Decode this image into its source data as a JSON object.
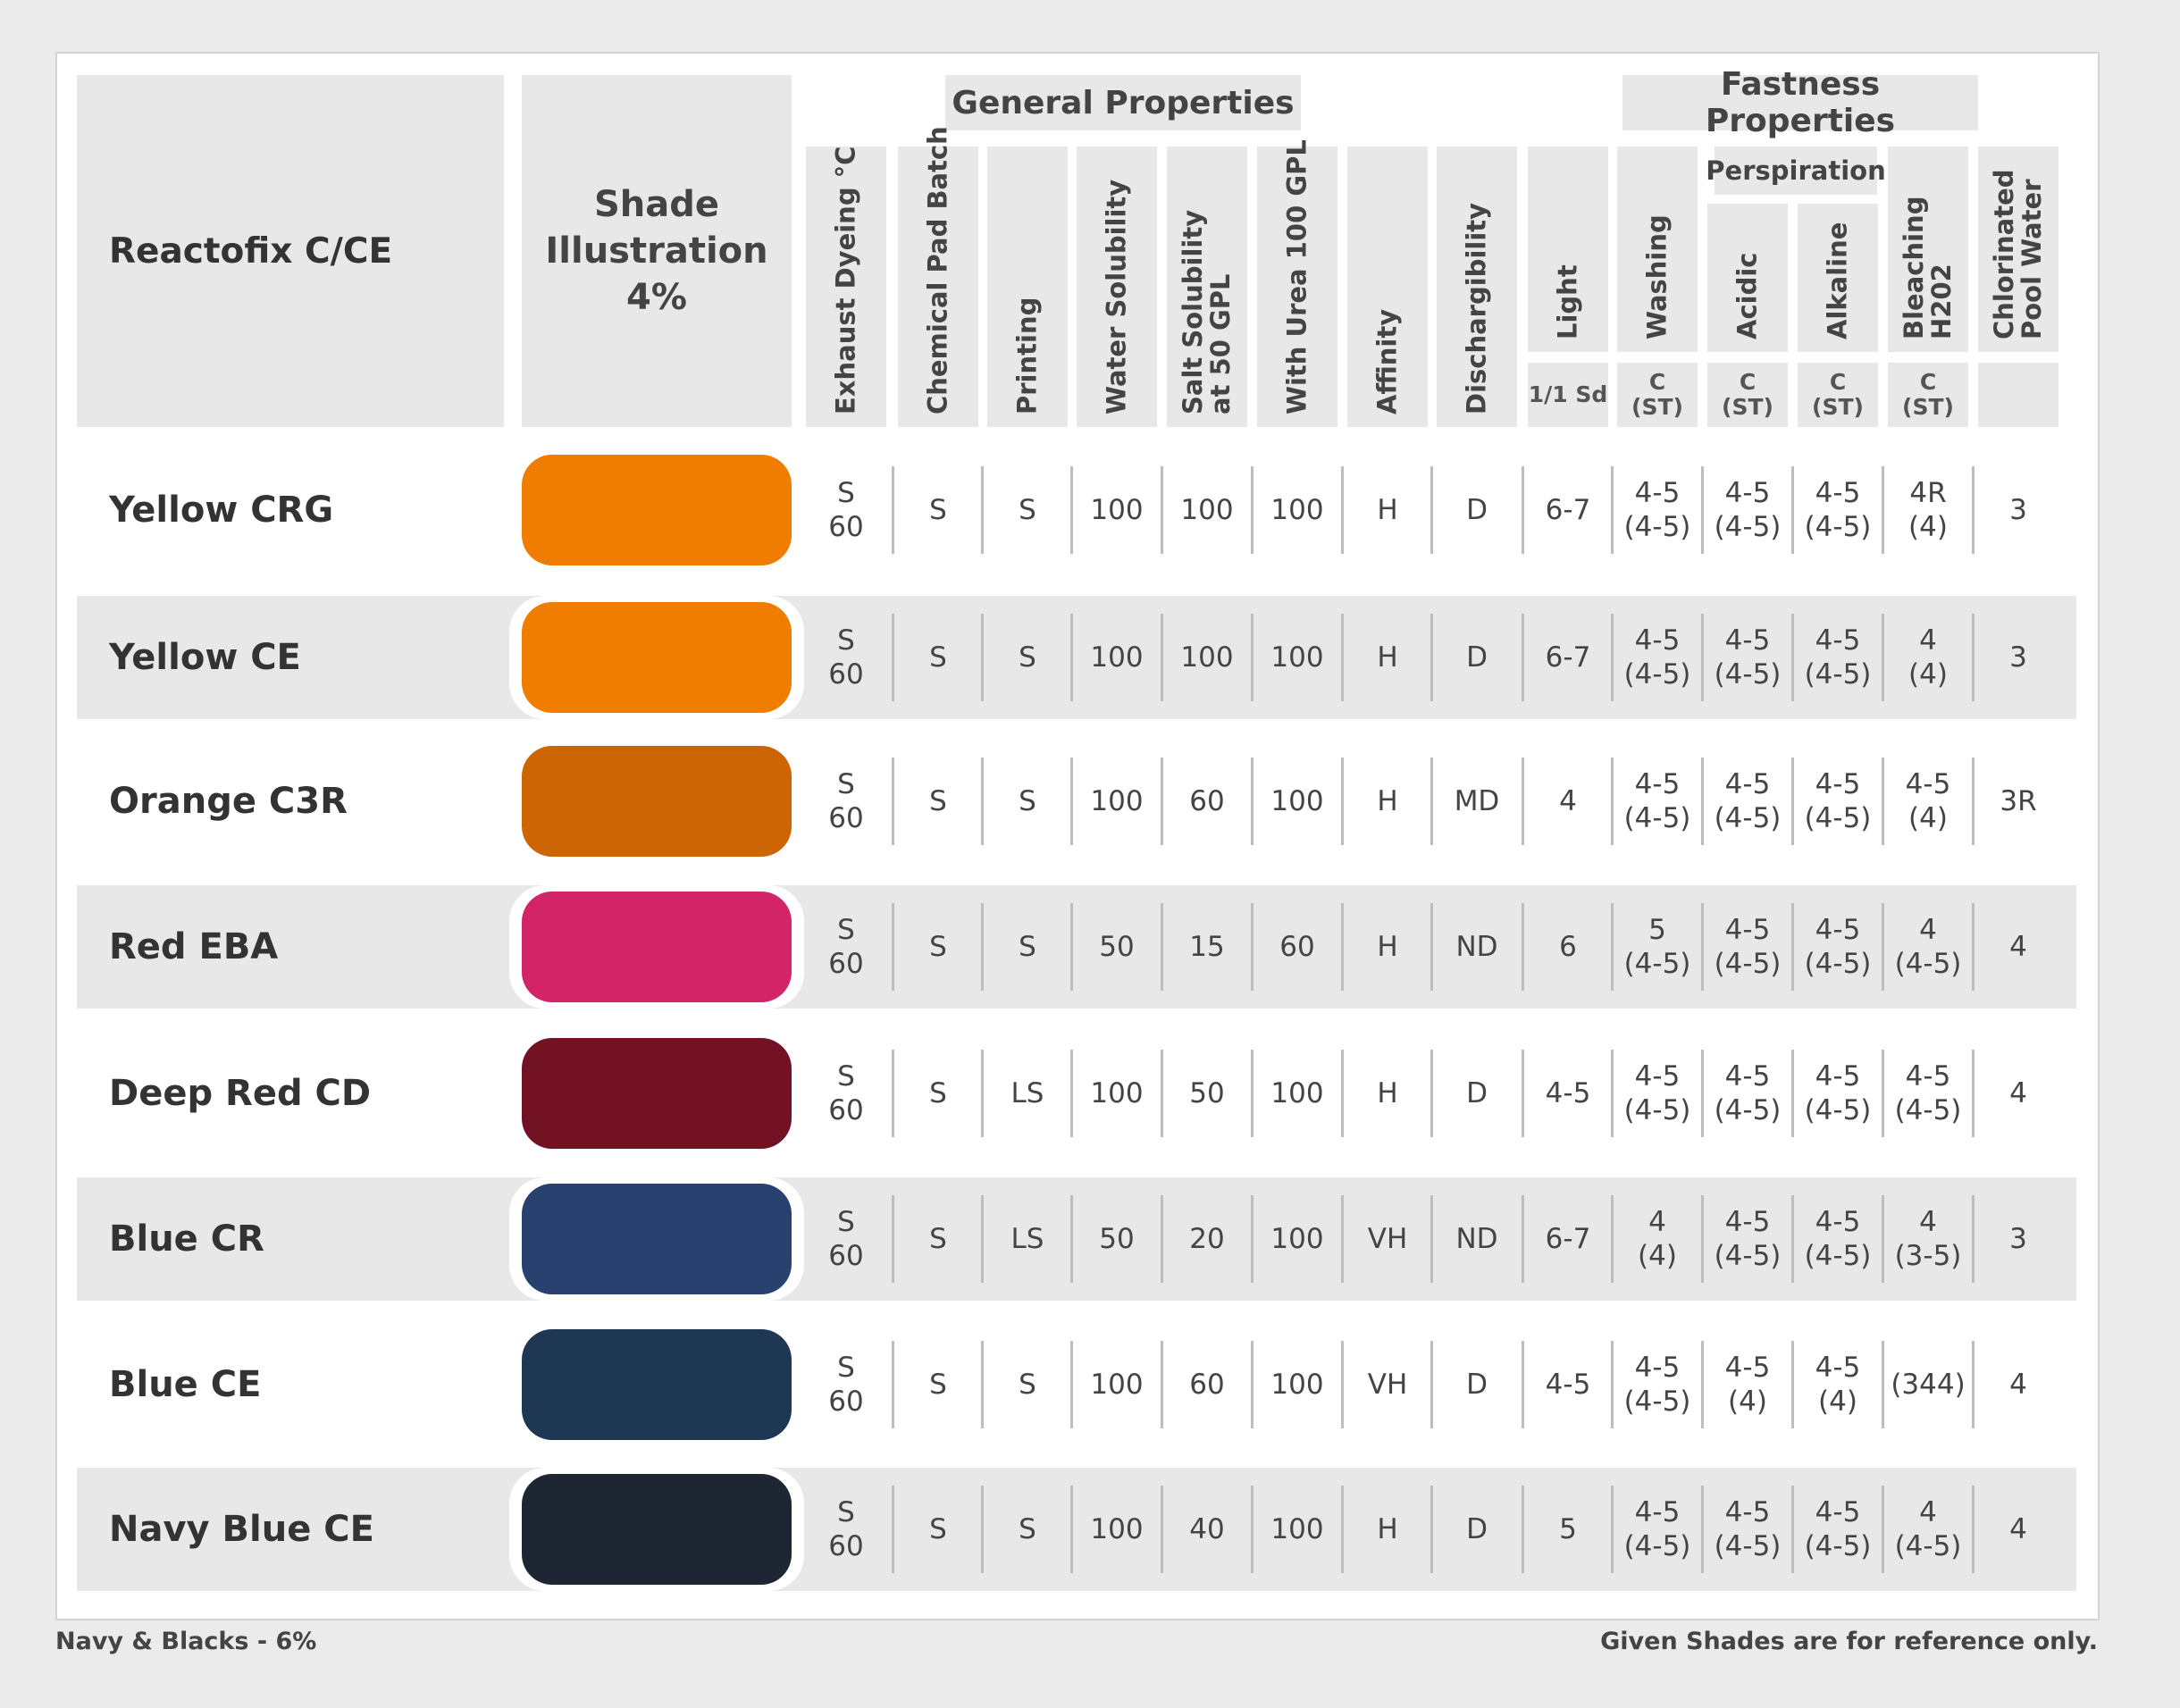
{
  "table": {
    "title": "Reactofix C/CE",
    "shade_header": [
      "Shade",
      "Illustration",
      "4%"
    ],
    "group_general": "General Properties",
    "group_fastness": "Fastness Properties",
    "subgroup_perspiration": "Perspiration",
    "columns": [
      {
        "lines": [
          "Exhaust Dyeing °C"
        ],
        "sub": ""
      },
      {
        "lines": [
          "Chemical Pad Batch"
        ],
        "sub": ""
      },
      {
        "lines": [
          "Printing"
        ],
        "sub": ""
      },
      {
        "lines": [
          "Water Solubility"
        ],
        "sub": ""
      },
      {
        "lines": [
          "Salt Solubility",
          "at 50 GPL"
        ],
        "sub": ""
      },
      {
        "lines": [
          "With Urea 100 GPL"
        ],
        "sub": ""
      },
      {
        "lines": [
          "Affinity"
        ],
        "sub": ""
      },
      {
        "lines": [
          "Dischargibility"
        ],
        "sub": ""
      },
      {
        "lines": [
          "Light"
        ],
        "sub": "1/1 Sd"
      },
      {
        "lines": [
          "Washing"
        ],
        "sub": "C\n(ST)"
      },
      {
        "lines": [
          "Acidic"
        ],
        "sub": "C\n(ST)"
      },
      {
        "lines": [
          "Alkaline"
        ],
        "sub": "C\n(ST)"
      },
      {
        "lines": [
          "Bleaching",
          "H202"
        ],
        "sub": "C\n(ST)"
      },
      {
        "lines": [
          "Chlorinated",
          "Pool Water"
        ],
        "sub": ""
      }
    ],
    "rows": [
      {
        "name": "Yellow CRG",
        "color": "#f07c00",
        "values": [
          "S\n60",
          "S",
          "S",
          "100",
          "100",
          "100",
          "H",
          "D",
          "6-7",
          "4-5\n(4-5)",
          "4-5\n(4-5)",
          "4-5\n(4-5)",
          "4R\n(4)",
          "3"
        ]
      },
      {
        "name": "Yellow CE",
        "color": "#f07c00",
        "values": [
          "S\n60",
          "S",
          "S",
          "100",
          "100",
          "100",
          "H",
          "D",
          "6-7",
          "4-5\n(4-5)",
          "4-5\n(4-5)",
          "4-5\n(4-5)",
          "4\n(4)",
          "3"
        ]
      },
      {
        "name": "Orange C3R",
        "color": "#cd6504",
        "values": [
          "S\n60",
          "S",
          "S",
          "100",
          "60",
          "100",
          "H",
          "MD",
          "4",
          "4-5\n(4-5)",
          "4-5\n(4-5)",
          "4-5\n(4-5)",
          "4-5\n(4)",
          "3R"
        ]
      },
      {
        "name": "Red EBA",
        "color": "#d22466",
        "values": [
          "S\n60",
          "S",
          "S",
          "50",
          "15",
          "60",
          "H",
          "ND",
          "6",
          "5\n(4-5)",
          "4-5\n(4-5)",
          "4-5\n(4-5)",
          "4\n(4-5)",
          "4"
        ]
      },
      {
        "name": "Deep Red CD",
        "color": "#721223",
        "values": [
          "S\n60",
          "S",
          "LS",
          "100",
          "50",
          "100",
          "H",
          "D",
          "4-5",
          "4-5\n(4-5)",
          "4-5\n(4-5)",
          "4-5\n(4-5)",
          "4-5\n(4-5)",
          "4"
        ]
      },
      {
        "name": "Blue CR",
        "color": "#28416f",
        "values": [
          "S\n60",
          "S",
          "LS",
          "50",
          "20",
          "100",
          "VH",
          "ND",
          "6-7",
          "4\n(4)",
          "4-5\n(4-5)",
          "4-5\n(4-5)",
          "4\n(3-5)",
          "3"
        ]
      },
      {
        "name": "Blue CE",
        "color": "#1e3854",
        "values": [
          "S\n60",
          "S",
          "S",
          "100",
          "60",
          "100",
          "VH",
          "D",
          "4-5",
          "4-5\n(4-5)",
          "4-5\n(4)",
          "4-5\n(4)",
          "(344)",
          "4"
        ]
      },
      {
        "name": "Navy Blue CE",
        "color": "#1f2633",
        "values": [
          "S\n60",
          "S",
          "S",
          "100",
          "40",
          "100",
          "H",
          "D",
          "5",
          "4-5\n(4-5)",
          "4-5\n(4-5)",
          "4-5\n(4-5)",
          "4\n(4-5)",
          "4"
        ]
      }
    ]
  },
  "footer": {
    "left": "Navy & Blacks - 6%",
    "right": "Given Shades are for reference only."
  }
}
